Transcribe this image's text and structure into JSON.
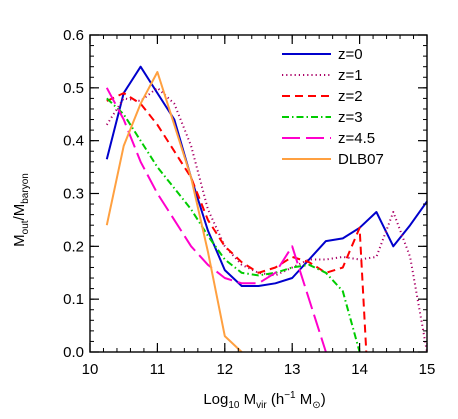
{
  "chart_data": {
    "type": "line",
    "xlabel": "Log₁₀ M_vir (h⁻¹ M⊙)",
    "xlabel_parts": {
      "pre": "Log",
      "sub1": "10",
      "mid": " M",
      "sub2": "vir",
      "post1": " (h",
      "sup": "−1",
      "post2": " M",
      "sun": "⊙",
      "close": ")"
    },
    "ylabel": "M_out/M_baryon",
    "ylabel_parts": {
      "m1": "M",
      "s1": "out",
      "slash": "/M",
      "s2": "baryon"
    },
    "xlim": [
      10,
      15
    ],
    "ylim": [
      0,
      0.6
    ],
    "xticks": [
      "10",
      "11",
      "12",
      "13",
      "14",
      "15"
    ],
    "yticks": [
      "0.0",
      "0.1",
      "0.2",
      "0.3",
      "0.4",
      "0.5",
      "0.6"
    ],
    "legend_position": "top-right",
    "series": [
      {
        "name": "z=0",
        "color": "#0000cc",
        "dash": "solid",
        "points": [
          [
            10.25,
            0.365
          ],
          [
            10.5,
            0.49
          ],
          [
            10.75,
            0.54
          ],
          [
            11.0,
            0.49
          ],
          [
            11.25,
            0.44
          ],
          [
            11.5,
            0.33
          ],
          [
            11.75,
            0.23
          ],
          [
            12.0,
            0.155
          ],
          [
            12.25,
            0.125
          ],
          [
            12.5,
            0.125
          ],
          [
            12.75,
            0.13
          ],
          [
            13.0,
            0.14
          ],
          [
            13.25,
            0.175
          ],
          [
            13.5,
            0.21
          ],
          [
            13.75,
            0.215
          ],
          [
            14.0,
            0.235
          ],
          [
            14.25,
            0.265
          ],
          [
            14.5,
            0.2
          ],
          [
            14.75,
            0.24
          ],
          [
            15.0,
            0.285
          ]
        ]
      },
      {
        "name": "z=1",
        "color": "#aa0066",
        "dash": "dotted",
        "points": [
          [
            10.25,
            0.43
          ],
          [
            10.5,
            0.48
          ],
          [
            10.75,
            0.475
          ],
          [
            11.0,
            0.5
          ],
          [
            11.25,
            0.47
          ],
          [
            11.5,
            0.39
          ],
          [
            11.75,
            0.27
          ],
          [
            12.0,
            0.2
          ],
          [
            12.25,
            0.165
          ],
          [
            12.5,
            0.15
          ],
          [
            12.75,
            0.145
          ],
          [
            13.0,
            0.16
          ],
          [
            13.25,
            0.175
          ],
          [
            13.5,
            0.175
          ],
          [
            13.75,
            0.18
          ],
          [
            14.0,
            0.175
          ],
          [
            14.25,
            0.18
          ],
          [
            14.5,
            0.265
          ],
          [
            14.75,
            0.18
          ],
          [
            15.0,
            0.0
          ]
        ]
      },
      {
        "name": "z=2",
        "color": "#ff0000",
        "dash": "dashed",
        "points": [
          [
            10.25,
            0.475
          ],
          [
            10.5,
            0.49
          ],
          [
            10.75,
            0.47
          ],
          [
            11.0,
            0.43
          ],
          [
            11.25,
            0.38
          ],
          [
            11.5,
            0.33
          ],
          [
            11.75,
            0.25
          ],
          [
            12.0,
            0.2
          ],
          [
            12.25,
            0.17
          ],
          [
            12.5,
            0.15
          ],
          [
            12.75,
            0.16
          ],
          [
            13.0,
            0.18
          ],
          [
            13.25,
            0.17
          ],
          [
            13.5,
            0.15
          ],
          [
            13.75,
            0.16
          ],
          [
            14.0,
            0.235
          ],
          [
            14.1,
            0.0
          ]
        ]
      },
      {
        "name": "z=3",
        "color": "#00cc00",
        "dash": "dashdot",
        "points": [
          [
            10.25,
            0.48
          ],
          [
            10.5,
            0.45
          ],
          [
            10.75,
            0.4
          ],
          [
            11.0,
            0.35
          ],
          [
            11.25,
            0.31
          ],
          [
            11.5,
            0.27
          ],
          [
            11.75,
            0.22
          ],
          [
            12.0,
            0.175
          ],
          [
            12.25,
            0.15
          ],
          [
            12.5,
            0.145
          ],
          [
            12.75,
            0.15
          ],
          [
            13.0,
            0.16
          ],
          [
            13.25,
            0.165
          ],
          [
            13.5,
            0.15
          ],
          [
            13.75,
            0.115
          ],
          [
            14.0,
            0.0
          ]
        ]
      },
      {
        "name": "z=4.5",
        "color": "#ff00cc",
        "dash": "longdash",
        "points": [
          [
            10.25,
            0.5
          ],
          [
            10.5,
            0.44
          ],
          [
            10.75,
            0.36
          ],
          [
            11.0,
            0.3
          ],
          [
            11.25,
            0.25
          ],
          [
            11.5,
            0.2
          ],
          [
            11.75,
            0.165
          ],
          [
            12.0,
            0.14
          ],
          [
            12.25,
            0.13
          ],
          [
            12.5,
            0.13
          ],
          [
            12.75,
            0.15
          ],
          [
            13.0,
            0.2
          ],
          [
            13.1,
            0.16
          ],
          [
            13.5,
            0.0
          ]
        ]
      },
      {
        "name": "DLB07",
        "color": "#ffa040",
        "dash": "solid",
        "points": [
          [
            10.25,
            0.24
          ],
          [
            10.5,
            0.39
          ],
          [
            10.75,
            0.47
          ],
          [
            11.0,
            0.53
          ],
          [
            11.25,
            0.43
          ],
          [
            11.5,
            0.33
          ],
          [
            11.75,
            0.19
          ],
          [
            12.0,
            0.03
          ],
          [
            12.25,
            0.0
          ]
        ]
      }
    ]
  }
}
